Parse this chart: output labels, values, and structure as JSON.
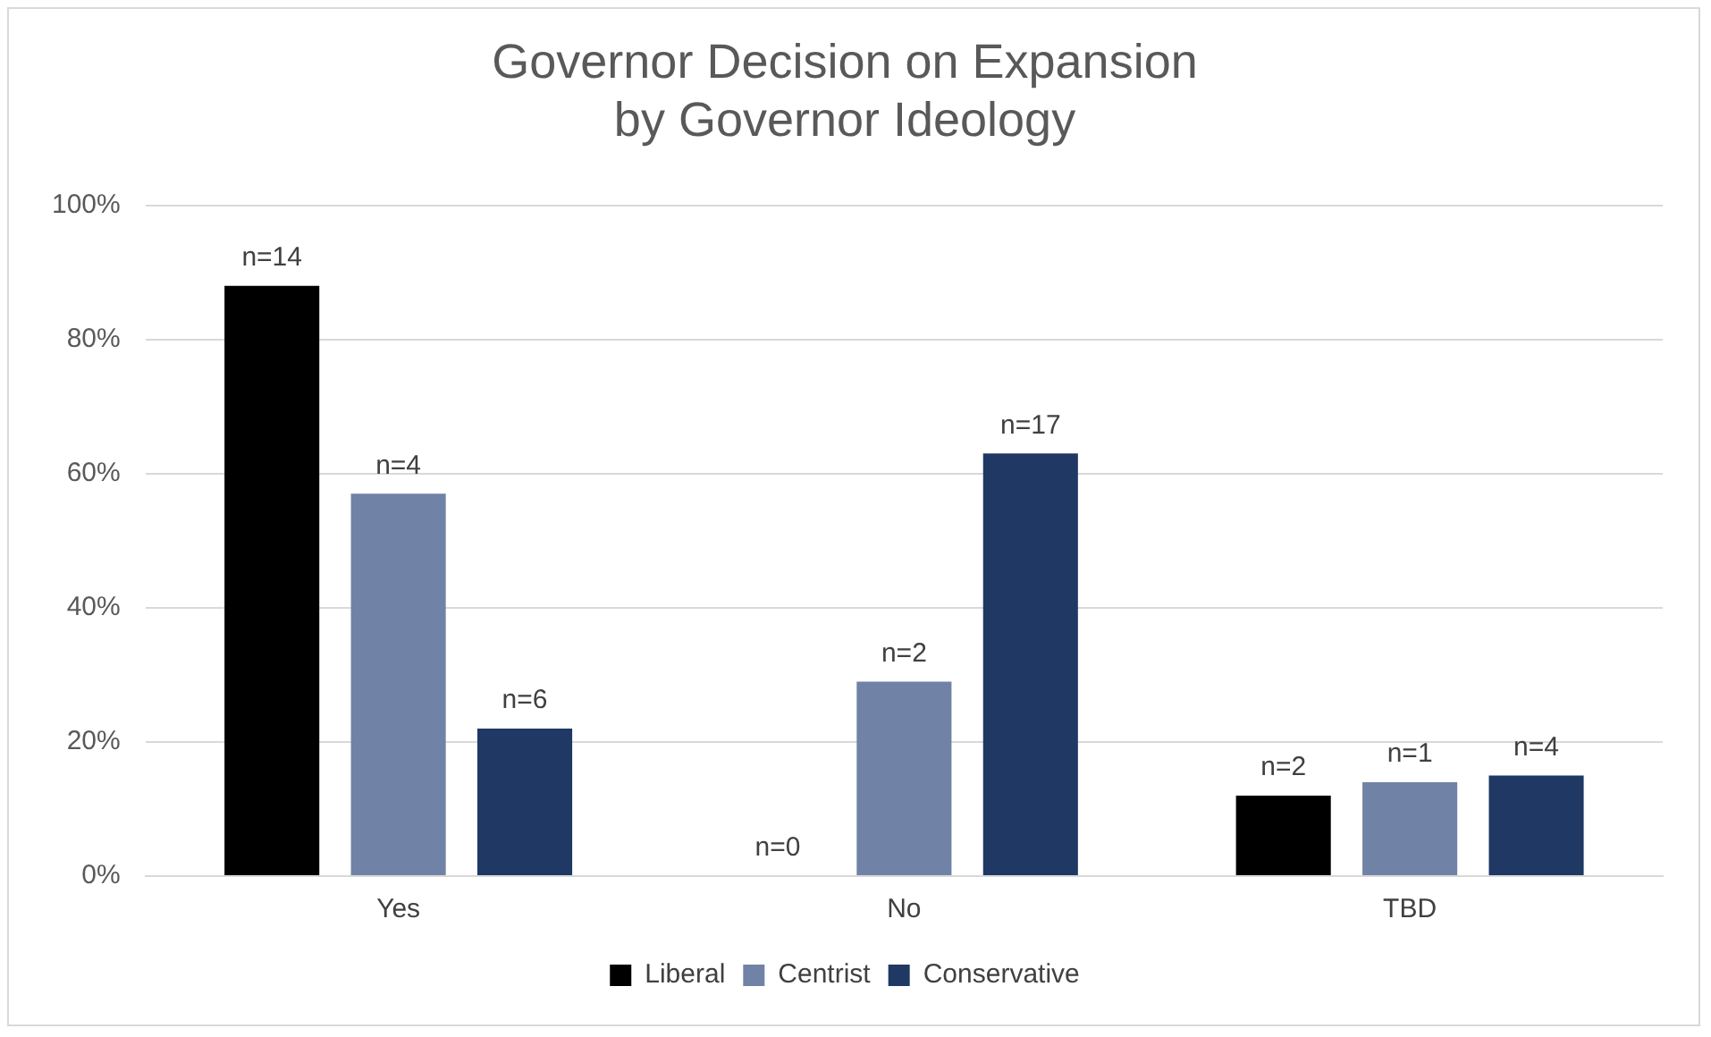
{
  "chart_data": {
    "type": "bar",
    "title": "Governor Decision on Expansion\nby Governor Ideology",
    "categories": [
      "Yes",
      "No",
      "TBD"
    ],
    "series": [
      {
        "name": "Liberal",
        "color": "#000000",
        "values": [
          88,
          0,
          12
        ]
      },
      {
        "name": "Centrist",
        "color": "#7082a6",
        "values": [
          57,
          29,
          14
        ]
      },
      {
        "name": "Conservative",
        "color": "#1f3864",
        "values": [
          22,
          63,
          15
        ]
      }
    ],
    "annotations": [
      "n=14",
      "n=4",
      "n=6",
      "n=0",
      "n=2",
      "n=17",
      "n=2",
      "n=1",
      "n=4"
    ],
    "ylim": [
      0,
      100
    ],
    "yticks": [
      {
        "value": 0,
        "label": "0%"
      },
      {
        "value": 20,
        "label": "20%"
      },
      {
        "value": 40,
        "label": "40%"
      },
      {
        "value": 60,
        "label": "60%"
      },
      {
        "value": 80,
        "label": "80%"
      },
      {
        "value": 100,
        "label": "100%"
      }
    ],
    "grid": "y",
    "legend": "bottom"
  }
}
